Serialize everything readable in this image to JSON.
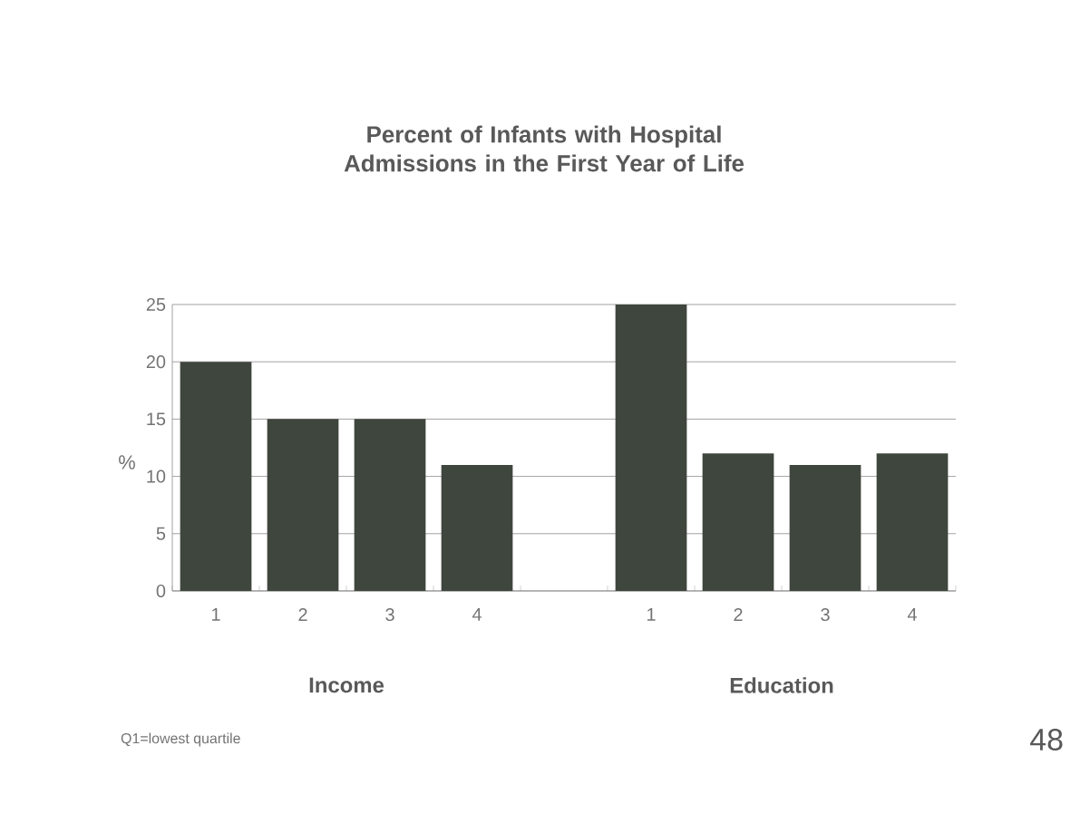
{
  "chart_data": {
    "type": "bar",
    "title": "Percent of Infants with Hospital Admissions in the First Year of Life",
    "ylabel": "%",
    "categories": [
      "1",
      "2",
      "3",
      "4",
      null,
      "1",
      "2",
      "3",
      "4"
    ],
    "values": [
      20,
      15,
      15,
      11,
      null,
      25,
      12,
      11,
      12
    ],
    "color": "#3f463d",
    "ylim": [
      0,
      25
    ],
    "yticks": [
      0,
      5,
      10,
      15,
      20,
      25
    ],
    "grid": "y",
    "annotations": [
      "Income",
      "Education",
      "Q1=lowest quartile",
      "48"
    ]
  }
}
